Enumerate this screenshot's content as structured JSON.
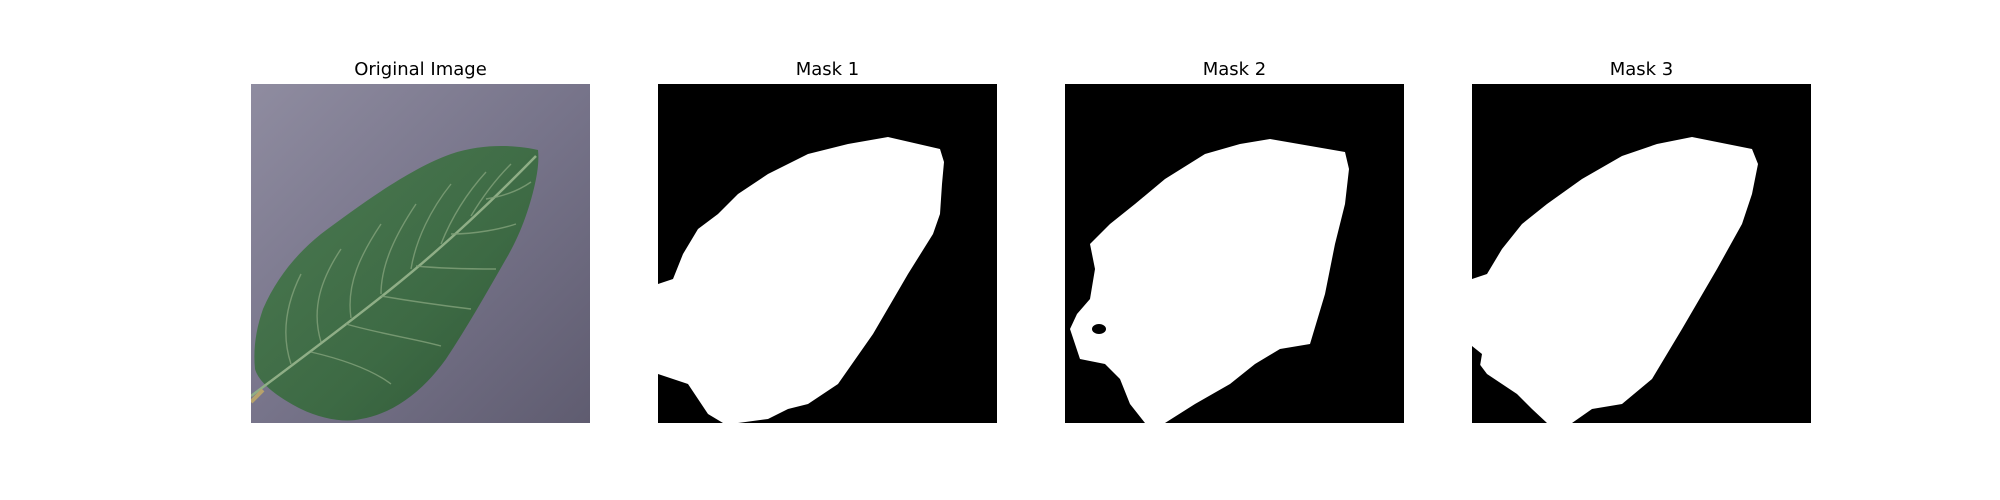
{
  "panels": [
    {
      "title": "Original Image",
      "kind": "photo",
      "subject": "green leaf on grey surface"
    },
    {
      "title": "Mask 1",
      "kind": "mask"
    },
    {
      "title": "Mask 2",
      "kind": "mask"
    },
    {
      "title": "Mask 3",
      "kind": "mask"
    }
  ],
  "colors": {
    "page_background": "#ffffff",
    "photo_background": "#7a7789",
    "leaf_green": "#3f6b45",
    "leaf_vein": "#8fae86",
    "mask_background": "#000000",
    "mask_foreground": "#ffffff"
  }
}
